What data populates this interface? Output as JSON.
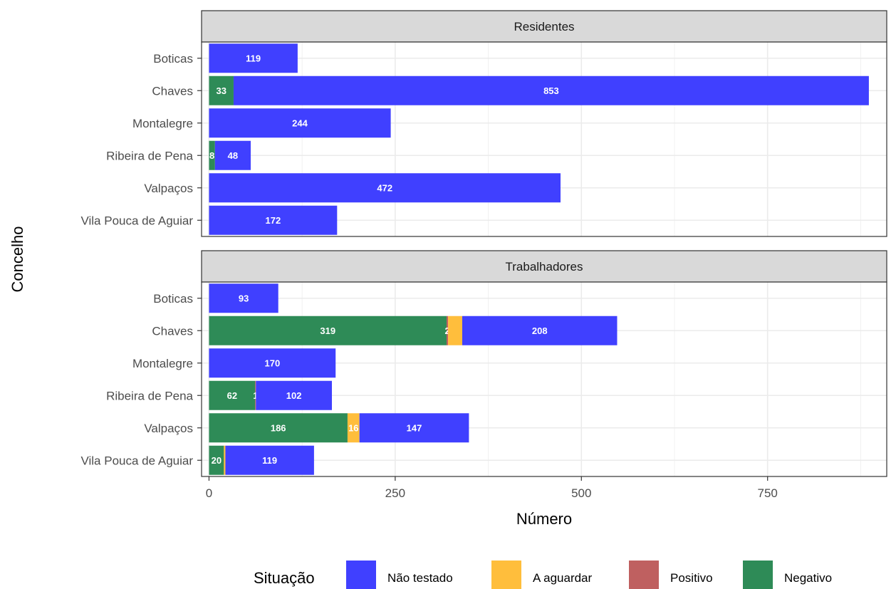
{
  "chart_data": {
    "type": "bar",
    "orientation": "horizontal",
    "stacked": true,
    "xlabel": "Número",
    "ylabel": "Concelho",
    "xlim": [
      -10,
      910
    ],
    "xticks": [
      0,
      250,
      500,
      750
    ],
    "xtick_labels": [
      "0",
      "250",
      "500",
      "750"
    ],
    "grid": true,
    "legend": {
      "title": "Situação",
      "position": "bottom",
      "entries": [
        {
          "label": "Não testado",
          "color": "#4040FF"
        },
        {
          "label": "A aguardar",
          "color": "#FFBE3C"
        },
        {
          "label": "Positivo",
          "color": "#BF6060"
        },
        {
          "label": "Negativo",
          "color": "#2E8B57"
        }
      ]
    },
    "stack_order": [
      "Negativo",
      "Positivo",
      "A aguardar",
      "Não testado"
    ],
    "categories": [
      "Boticas",
      "Chaves",
      "Montalegre",
      "Ribeira de Pena",
      "Valpaços",
      "Vila Pouca de Aguiar"
    ],
    "panels": [
      {
        "title": "Residentes",
        "series": [
          {
            "name": "Negativo",
            "values": [
              0,
              33,
              0,
              8,
              0,
              0
            ],
            "labels": [
              "",
              "33",
              "",
              "8",
              "",
              ""
            ]
          },
          {
            "name": "Positivo",
            "values": [
              0,
              0,
              0,
              0,
              0,
              0
            ],
            "labels": [
              "",
              "",
              "",
              "",
              "",
              ""
            ]
          },
          {
            "name": "A aguardar",
            "values": [
              0,
              0,
              0,
              0,
              0,
              0
            ],
            "labels": [
              "",
              "",
              "",
              "",
              "",
              ""
            ]
          },
          {
            "name": "Não testado",
            "values": [
              119,
              853,
              244,
              48,
              472,
              172
            ],
            "labels": [
              "119",
              "853",
              "244",
              "48",
              "472",
              "172"
            ]
          }
        ]
      },
      {
        "title": "Trabalhadores",
        "series": [
          {
            "name": "Negativo",
            "values": [
              0,
              319,
              0,
              62,
              186,
              20
            ],
            "labels": [
              "",
              "319",
              "",
              "62",
              "186",
              "20"
            ]
          },
          {
            "name": "Positivo",
            "values": [
              0,
              2,
              0,
              1,
              0,
              0
            ],
            "labels": [
              "",
              "2",
              "",
              "1",
              "",
              ""
            ]
          },
          {
            "name": "A aguardar",
            "values": [
              0,
              19,
              0,
              0,
              16,
              2
            ],
            "labels": [
              "",
              "",
              "",
              "",
              "16",
              ""
            ]
          },
          {
            "name": "Não testado",
            "values": [
              93,
              208,
              170,
              102,
              147,
              119
            ],
            "labels": [
              "93",
              "208",
              "170",
              "102",
              "147",
              "119"
            ]
          }
        ]
      }
    ]
  }
}
